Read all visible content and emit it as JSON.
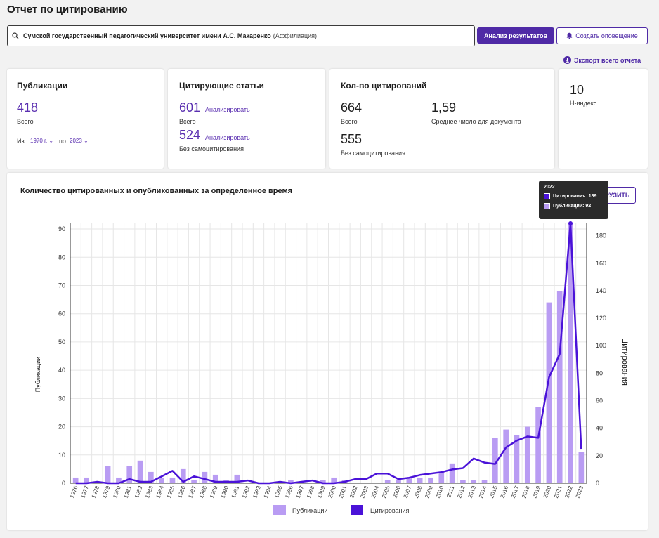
{
  "page_title": "Отчет по цитированию",
  "search": {
    "query": "Сумской государственный педагогический университет имени А.С. Макаренко",
    "suffix": "(Аффилиация)"
  },
  "buttons": {
    "analyze": "Анализ результатов",
    "alert": "Создать оповещение",
    "export": "Экспорт всего отчета",
    "download": "ЗАГРУЗИТЬ"
  },
  "publications": {
    "title": "Публикации",
    "total": "418",
    "total_label": "Всего",
    "from_label": "Из",
    "from_value": "1970 г.",
    "to_label": "по",
    "to_value": "2023"
  },
  "citing": {
    "title": "Цитирующие статьи",
    "total": "601",
    "analyze": "Анализировать",
    "total_label": "Всего",
    "no_self": "524",
    "analyze2": "Анализировать",
    "no_self_label": "Без самоцитирования"
  },
  "citations": {
    "title": "Кол-во цитирований",
    "total": "664",
    "total_label": "Всего",
    "avg": "1,59",
    "avg_label": "Среднее число для документа",
    "no_self": "555",
    "no_self_label": "Без самоцитирования"
  },
  "hindex": {
    "value": "10",
    "label": "H-индекс"
  },
  "colors": {
    "accent": "#4f2aa6",
    "bar": "#b99cf3",
    "line": "#4a12d8"
  },
  "chart_data": {
    "type": "bar",
    "title": "Количество цитированных и опубликованных за определенное время",
    "ylabel": "Публикации",
    "y2label": "Цитирования",
    "ylim": [
      0,
      92
    ],
    "y2lim": [
      0,
      189
    ],
    "y_ticks": [
      0,
      10,
      20,
      30,
      40,
      50,
      60,
      70,
      80,
      90
    ],
    "y2_ticks": [
      0,
      20,
      40,
      60,
      80,
      100,
      120,
      140,
      160,
      180
    ],
    "categories": [
      "1976",
      "1977",
      "1978",
      "1979",
      "1980",
      "1981",
      "1982",
      "1983",
      "1984",
      "1985",
      "1986",
      "1987",
      "1988",
      "1989",
      "1990",
      "1991",
      "1992",
      "1993",
      "1994",
      "1995",
      "1996",
      "1997",
      "1998",
      "1999",
      "2000",
      "2001",
      "2002",
      "2003",
      "2004",
      "2005",
      "2006",
      "2007",
      "2008",
      "2009",
      "2010",
      "2011",
      "2012",
      "2013",
      "2014",
      "2015",
      "2016",
      "2017",
      "2018",
      "2019",
      "2020",
      "2021",
      "2022",
      "2023"
    ],
    "series": [
      {
        "name": "Публикации",
        "type": "bar",
        "values": [
          2,
          2,
          0,
          6,
          2,
          6,
          8,
          4,
          2,
          2,
          5,
          1,
          4,
          3,
          1,
          3,
          0,
          0,
          0,
          0,
          1,
          0,
          0,
          1,
          2,
          1,
          0,
          0,
          0,
          1,
          1,
          2,
          2,
          2,
          4,
          7,
          1,
          1,
          1,
          16,
          19,
          17,
          20,
          27,
          64,
          68,
          92,
          11
        ]
      },
      {
        "name": "Цитирования",
        "type": "line",
        "values": [
          0,
          0,
          1,
          0,
          0,
          3,
          1,
          1,
          5,
          9,
          1,
          5,
          3,
          1,
          1,
          1,
          2,
          0,
          0,
          1,
          0,
          1,
          2,
          0,
          0,
          1,
          3,
          3,
          7,
          7,
          3,
          4,
          6,
          7,
          8,
          10,
          11,
          18,
          15,
          14,
          26,
          31,
          34,
          33,
          77,
          94,
          189,
          25
        ]
      }
    ],
    "legend": [
      "Публикации",
      "Цитирования"
    ],
    "legend_position": "bottom",
    "tooltip": {
      "year": "2022",
      "citations": "Цитирования: 189",
      "publications": "Публикации: 92"
    }
  }
}
